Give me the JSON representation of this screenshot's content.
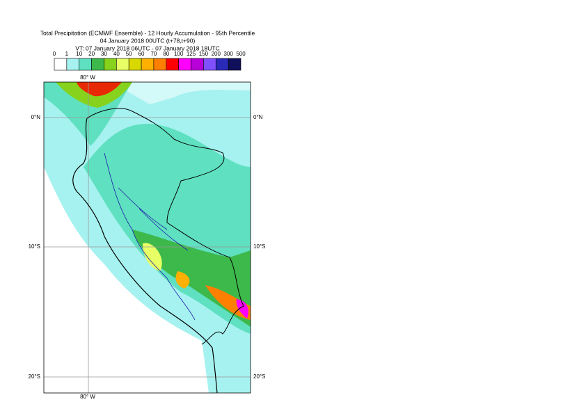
{
  "header": {
    "title_lines": [
      "Total Precipitation (ECMWF Ensemble) - 12 Hourly Accumulation - 95th Percentile",
      "04 January 2018 00UTC (t+78,t+90)",
      "VT: 07 January 2018 06UTC - 07 January 2018 18UTC"
    ]
  },
  "colorbar": {
    "labels": [
      "0",
      "1",
      "10",
      "20",
      "30",
      "40",
      "50",
      "60",
      "70",
      "80",
      "100",
      "125",
      "150",
      "200",
      "300",
      "500"
    ],
    "colors": [
      "#ffffff",
      "#a6f2f0",
      "#5fe0c0",
      "#3db84a",
      "#86d21c",
      "#e8ff66",
      "#d9d900",
      "#ffb000",
      "#ff7f00",
      "#ff0000",
      "#ff00ff",
      "#b800d8",
      "#8050ff",
      "#2a2ab8",
      "#10105a"
    ]
  },
  "map": {
    "lon_label": "80° W",
    "lat_labels": [
      "0°N",
      "10°S",
      "20°S"
    ]
  }
}
